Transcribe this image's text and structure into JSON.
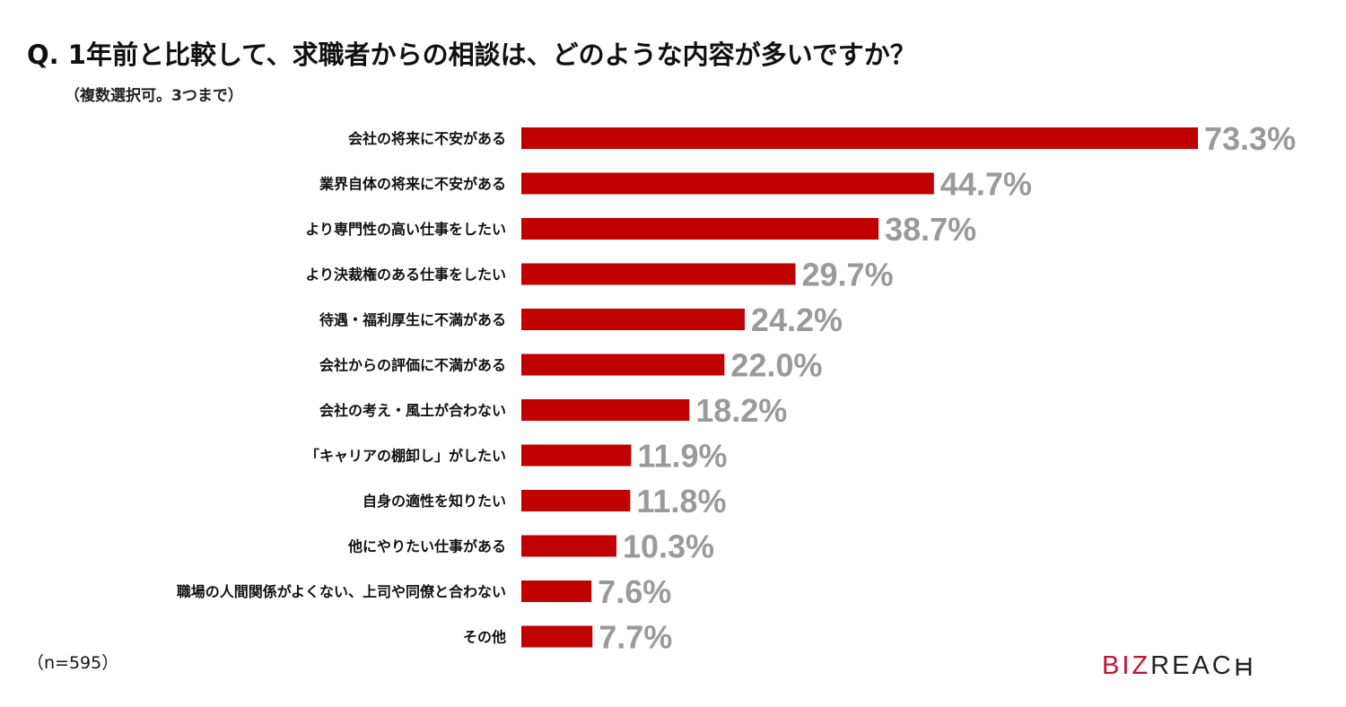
{
  "title": "Q. 1年前と比較して、求職者からの相談は、どのような内容が多いですか？",
  "subtitle": "（複数選択可。3つまで）",
  "sample_size": "（n=595）",
  "logo": {
    "accent": "BIZ",
    "rest": "REAC"
  },
  "colors": {
    "bar": "#c00000",
    "value_text": "#9a9a9a",
    "logo_accent": "#c8102e"
  },
  "chart_data": {
    "type": "bar",
    "orientation": "horizontal",
    "categories": [
      "会社の将来に不安がある",
      "業界自体の将来に不安がある",
      "より専門性の高い仕事をしたい",
      "より決裁権のある仕事をしたい",
      "待遇・福利厚生に不満がある",
      "会社からの評価に不満がある",
      "会社の考え・風土が合わない",
      "「キャリアの棚卸し」がしたい",
      "自身の適性を知りたい",
      "他にやりたい仕事がある",
      "職場の人間関係がよくない、上司や同僚と合わない",
      "その他"
    ],
    "values": [
      73.3,
      44.7,
      38.7,
      29.7,
      24.2,
      22.0,
      18.2,
      11.9,
      11.8,
      10.3,
      7.6,
      7.7
    ],
    "value_labels": [
      "73.3%",
      "44.7%",
      "38.7%",
      "29.7%",
      "24.2%",
      "22.0%",
      "18.2%",
      "11.9%",
      "11.8%",
      "10.3%",
      "7.6%",
      "7.7%"
    ],
    "xlim": [
      0,
      73.3
    ],
    "grid": false,
    "legend": "none"
  }
}
